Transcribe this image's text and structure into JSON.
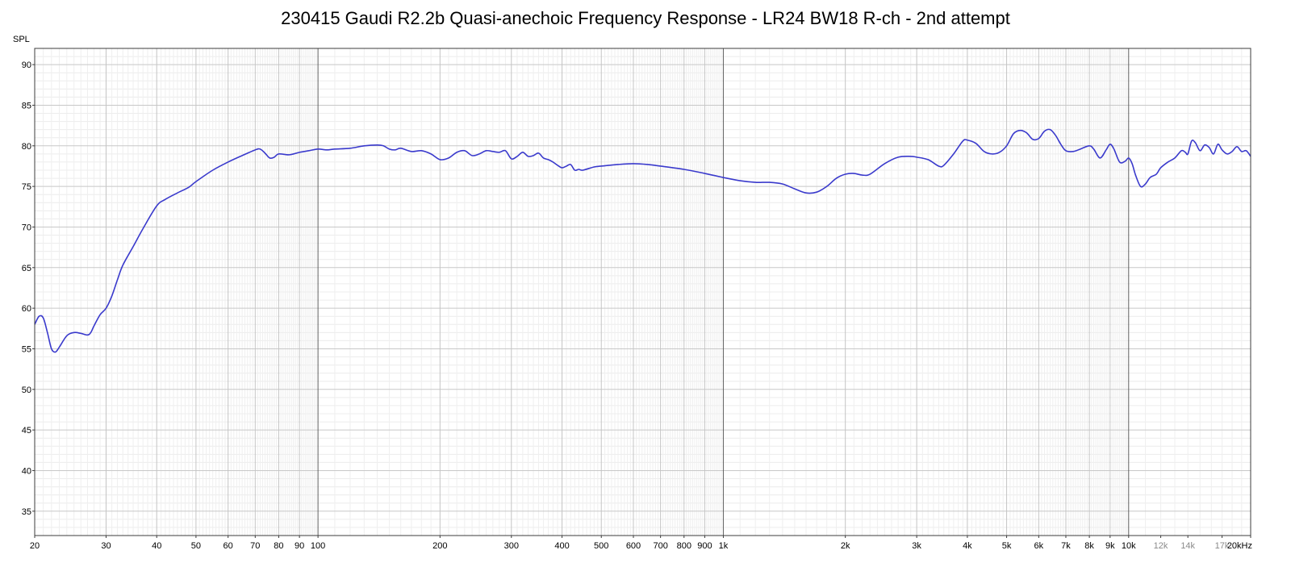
{
  "chart_data": {
    "type": "line",
    "title": "230415 Gaudi R2.2b Quasi-anechoic Frequency Response - LR24 BW18 R-ch - 2nd attempt",
    "ylabel": "SPL",
    "xscale": "log",
    "xlim": [
      20,
      20000
    ],
    "ylim": [
      32,
      92
    ],
    "grid": true,
    "y_ticks": [
      35,
      40,
      45,
      50,
      55,
      60,
      65,
      70,
      75,
      80,
      85,
      90
    ],
    "x_ticks": [
      {
        "value": 20,
        "label": "20"
      },
      {
        "value": 30,
        "label": "30"
      },
      {
        "value": 40,
        "label": "40"
      },
      {
        "value": 50,
        "label": "50"
      },
      {
        "value": 60,
        "label": "60"
      },
      {
        "value": 70,
        "label": "70"
      },
      {
        "value": 80,
        "label": "80"
      },
      {
        "value": 90,
        "label": "90"
      },
      {
        "value": 100,
        "label": "100"
      },
      {
        "value": 200,
        "label": "200"
      },
      {
        "value": 300,
        "label": "300"
      },
      {
        "value": 400,
        "label": "400"
      },
      {
        "value": 500,
        "label": "500"
      },
      {
        "value": 600,
        "label": "600"
      },
      {
        "value": 700,
        "label": "700"
      },
      {
        "value": 800,
        "label": "800"
      },
      {
        "value": 900,
        "label": "900"
      },
      {
        "value": 1000,
        "label": "1k"
      },
      {
        "value": 2000,
        "label": "2k"
      },
      {
        "value": 3000,
        "label": "3k"
      },
      {
        "value": 4000,
        "label": "4k"
      },
      {
        "value": 5000,
        "label": "5k"
      },
      {
        "value": 6000,
        "label": "6k"
      },
      {
        "value": 7000,
        "label": "7k"
      },
      {
        "value": 8000,
        "label": "8k"
      },
      {
        "value": 9000,
        "label": "9k"
      },
      {
        "value": 10000,
        "label": "10k"
      },
      {
        "value": 12000,
        "label": "12k",
        "minor": true
      },
      {
        "value": 14000,
        "label": "14k",
        "minor": true
      },
      {
        "value": 17000,
        "label": "17k",
        "minor": true
      },
      {
        "value": 20000,
        "label": "20kHz"
      }
    ],
    "series": [
      {
        "color": "#3a3acc",
        "points": [
          [
            20,
            58.0
          ],
          [
            20.5,
            59.0
          ],
          [
            21,
            58.8
          ],
          [
            21.5,
            57.0
          ],
          [
            22,
            55.0
          ],
          [
            22.5,
            54.6
          ],
          [
            23,
            55.2
          ],
          [
            24,
            56.6
          ],
          [
            25,
            57.0
          ],
          [
            26,
            56.9
          ],
          [
            27,
            56.7
          ],
          [
            27.5,
            57.0
          ],
          [
            28,
            57.8
          ],
          [
            29,
            59.2
          ],
          [
            30,
            60.0
          ],
          [
            31,
            61.5
          ],
          [
            32,
            63.5
          ],
          [
            33,
            65.3
          ],
          [
            35,
            67.6
          ],
          [
            37,
            69.8
          ],
          [
            40,
            72.6
          ],
          [
            42,
            73.4
          ],
          [
            45,
            74.2
          ],
          [
            48,
            74.9
          ],
          [
            50,
            75.6
          ],
          [
            55,
            77.0
          ],
          [
            60,
            78.0
          ],
          [
            65,
            78.8
          ],
          [
            70,
            79.5
          ],
          [
            72,
            79.6
          ],
          [
            74,
            79.1
          ],
          [
            76,
            78.5
          ],
          [
            78,
            78.6
          ],
          [
            80,
            79.0
          ],
          [
            85,
            78.9
          ],
          [
            90,
            79.2
          ],
          [
            95,
            79.4
          ],
          [
            100,
            79.6
          ],
          [
            105,
            79.5
          ],
          [
            110,
            79.6
          ],
          [
            120,
            79.7
          ],
          [
            130,
            80.0
          ],
          [
            140,
            80.1
          ],
          [
            145,
            80.0
          ],
          [
            150,
            79.6
          ],
          [
            155,
            79.5
          ],
          [
            160,
            79.7
          ],
          [
            170,
            79.3
          ],
          [
            180,
            79.4
          ],
          [
            190,
            79.0
          ],
          [
            200,
            78.3
          ],
          [
            210,
            78.5
          ],
          [
            220,
            79.2
          ],
          [
            230,
            79.4
          ],
          [
            240,
            78.8
          ],
          [
            250,
            79.0
          ],
          [
            260,
            79.4
          ],
          [
            270,
            79.3
          ],
          [
            280,
            79.2
          ],
          [
            290,
            79.4
          ],
          [
            300,
            78.4
          ],
          [
            310,
            78.7
          ],
          [
            320,
            79.2
          ],
          [
            330,
            78.7
          ],
          [
            340,
            78.8
          ],
          [
            350,
            79.1
          ],
          [
            360,
            78.5
          ],
          [
            370,
            78.3
          ],
          [
            380,
            78.0
          ],
          [
            390,
            77.6
          ],
          [
            400,
            77.3
          ],
          [
            410,
            77.5
          ],
          [
            420,
            77.7
          ],
          [
            430,
            77.0
          ],
          [
            440,
            77.1
          ],
          [
            450,
            77.0
          ],
          [
            480,
            77.4
          ],
          [
            500,
            77.5
          ],
          [
            550,
            77.7
          ],
          [
            600,
            77.8
          ],
          [
            650,
            77.7
          ],
          [
            700,
            77.5
          ],
          [
            800,
            77.1
          ],
          [
            900,
            76.6
          ],
          [
            1000,
            76.1
          ],
          [
            1100,
            75.7
          ],
          [
            1200,
            75.5
          ],
          [
            1300,
            75.5
          ],
          [
            1400,
            75.3
          ],
          [
            1500,
            74.7
          ],
          [
            1600,
            74.2
          ],
          [
            1700,
            74.3
          ],
          [
            1800,
            75.0
          ],
          [
            1900,
            76.0
          ],
          [
            2000,
            76.5
          ],
          [
            2100,
            76.6
          ],
          [
            2200,
            76.4
          ],
          [
            2300,
            76.5
          ],
          [
            2500,
            77.8
          ],
          [
            2700,
            78.6
          ],
          [
            2900,
            78.7
          ],
          [
            3000,
            78.6
          ],
          [
            3200,
            78.3
          ],
          [
            3400,
            77.5
          ],
          [
            3500,
            77.6
          ],
          [
            3700,
            79.0
          ],
          [
            3900,
            80.6
          ],
          [
            4000,
            80.7
          ],
          [
            4200,
            80.3
          ],
          [
            4400,
            79.3
          ],
          [
            4600,
            79.0
          ],
          [
            4800,
            79.2
          ],
          [
            5000,
            80.0
          ],
          [
            5200,
            81.5
          ],
          [
            5400,
            81.9
          ],
          [
            5600,
            81.6
          ],
          [
            5800,
            80.8
          ],
          [
            6000,
            80.9
          ],
          [
            6200,
            81.8
          ],
          [
            6400,
            82.0
          ],
          [
            6600,
            81.3
          ],
          [
            6800,
            80.2
          ],
          [
            7000,
            79.4
          ],
          [
            7300,
            79.3
          ],
          [
            7600,
            79.6
          ],
          [
            8000,
            80.0
          ],
          [
            8200,
            79.6
          ],
          [
            8500,
            78.5
          ],
          [
            8800,
            79.5
          ],
          [
            9000,
            80.2
          ],
          [
            9200,
            79.6
          ],
          [
            9500,
            78.0
          ],
          [
            9800,
            78.1
          ],
          [
            10000,
            78.5
          ],
          [
            10200,
            77.8
          ],
          [
            10400,
            76.4
          ],
          [
            10700,
            75.0
          ],
          [
            11000,
            75.3
          ],
          [
            11300,
            76.1
          ],
          [
            11700,
            76.5
          ],
          [
            12000,
            77.3
          ],
          [
            12500,
            78.0
          ],
          [
            13000,
            78.5
          ],
          [
            13500,
            79.4
          ],
          [
            13800,
            79.2
          ],
          [
            14000,
            79.0
          ],
          [
            14300,
            80.6
          ],
          [
            14600,
            80.4
          ],
          [
            15000,
            79.4
          ],
          [
            15400,
            80.1
          ],
          [
            15800,
            79.8
          ],
          [
            16200,
            79.0
          ],
          [
            16600,
            80.2
          ],
          [
            17000,
            79.5
          ],
          [
            17500,
            79.0
          ],
          [
            18000,
            79.3
          ],
          [
            18500,
            79.9
          ],
          [
            19000,
            79.3
          ],
          [
            19500,
            79.4
          ],
          [
            20000,
            78.7
          ]
        ]
      }
    ]
  }
}
